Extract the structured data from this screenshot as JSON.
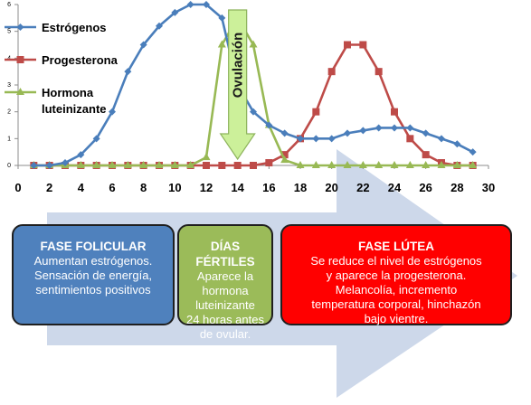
{
  "chart_data": {
    "type": "line",
    "title": "",
    "xlabel": "",
    "ylabel": "",
    "xlim": [
      0,
      30
    ],
    "ylim": [
      0,
      6
    ],
    "xticks": [
      0,
      2,
      4,
      6,
      8,
      10,
      12,
      14,
      16,
      18,
      20,
      22,
      24,
      26,
      28,
      30
    ],
    "yticks": [
      0,
      1,
      2,
      3,
      4,
      5,
      6
    ],
    "grid": false,
    "legend_position": "top-left",
    "x": [
      1,
      2,
      3,
      4,
      5,
      6,
      7,
      8,
      9,
      10,
      11,
      12,
      13,
      14,
      15,
      16,
      17,
      18,
      19,
      20,
      21,
      22,
      23,
      24,
      25,
      26,
      27,
      28,
      29
    ],
    "series": [
      {
        "name": "Estrógenos",
        "color": "#4a7ebb",
        "marker": "diamond",
        "values": [
          0,
          0,
          0.1,
          0.4,
          1,
          2,
          3.5,
          4.5,
          5.2,
          5.7,
          6,
          6,
          5.5,
          3,
          2,
          1.5,
          1.2,
          1,
          1,
          1,
          1.2,
          1.3,
          1.4,
          1.4,
          1.4,
          1.2,
          1,
          0.8,
          0.5
        ]
      },
      {
        "name": "Progesterona",
        "color": "#be4b48",
        "marker": "square",
        "values": [
          0,
          0,
          0,
          0,
          0,
          0,
          0,
          0,
          0,
          0,
          0,
          0,
          0,
          0,
          0,
          0.1,
          0.4,
          1,
          2,
          3.5,
          4.5,
          4.5,
          3.5,
          2,
          1,
          0.4,
          0.1,
          0,
          0
        ]
      },
      {
        "name": "Hormona luteinizante",
        "legend_lines": [
          "Hormona",
          "luteinizante"
        ],
        "color": "#98b954",
        "marker": "triangle",
        "values": [
          0,
          0,
          0,
          0,
          0,
          0,
          0,
          0,
          0,
          0,
          0,
          0.3,
          4.5,
          5.5,
          4.5,
          1.5,
          0.2,
          0,
          0,
          0,
          0,
          0,
          0,
          0,
          0,
          0,
          0,
          0,
          0
        ]
      }
    ],
    "annotation": {
      "text": "Ovulación",
      "x": 14,
      "color": "#ccf09a"
    },
    "arrow_color": "#cdd8ea"
  },
  "phases": {
    "folicular": {
      "title": "FASE FOLICULAR",
      "lines": [
        "Aumentan estrógenos.",
        "Sensación de energía,",
        "sentimientos positivos"
      ],
      "color": "#4f81bd"
    },
    "fertiles": {
      "title": "DÍAS FÉRTILES",
      "lines": [
        "Aparece la",
        "hormona",
        "luteinizante",
        "24 horas antes",
        "de ovular."
      ],
      "color": "#9bbb59"
    },
    "lutea": {
      "title": "FASE LÚTEA",
      "lines": [
        "Se reduce el nivel de estrógenos",
        "y aparece la progesterona.",
        "Melancolía, incremento",
        "temperatura corporal, hinchazón",
        "bajo vientre."
      ],
      "color": "#ff0000"
    }
  }
}
